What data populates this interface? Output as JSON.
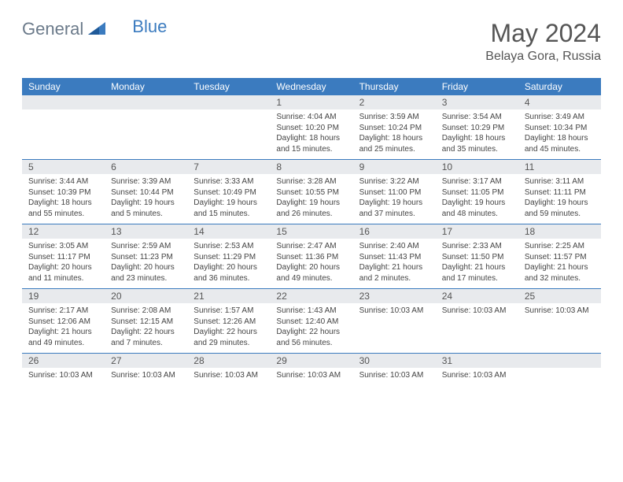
{
  "brand": {
    "part1": "General",
    "part2": "Blue"
  },
  "title": "May 2024",
  "location": "Belaya Gora, Russia",
  "colors": {
    "header_bg": "#3b7bbf",
    "daynum_bg": "#e8eaed",
    "text": "#555555",
    "rule": "#3b7bbf"
  },
  "day_names": [
    "Sunday",
    "Monday",
    "Tuesday",
    "Wednesday",
    "Thursday",
    "Friday",
    "Saturday"
  ],
  "weeks": [
    [
      {
        "n": "",
        "lines": []
      },
      {
        "n": "",
        "lines": []
      },
      {
        "n": "",
        "lines": []
      },
      {
        "n": "1",
        "lines": [
          "Sunrise: 4:04 AM",
          "Sunset: 10:20 PM",
          "Daylight: 18 hours and 15 minutes."
        ]
      },
      {
        "n": "2",
        "lines": [
          "Sunrise: 3:59 AM",
          "Sunset: 10:24 PM",
          "Daylight: 18 hours and 25 minutes."
        ]
      },
      {
        "n": "3",
        "lines": [
          "Sunrise: 3:54 AM",
          "Sunset: 10:29 PM",
          "Daylight: 18 hours and 35 minutes."
        ]
      },
      {
        "n": "4",
        "lines": [
          "Sunrise: 3:49 AM",
          "Sunset: 10:34 PM",
          "Daylight: 18 hours and 45 minutes."
        ]
      }
    ],
    [
      {
        "n": "5",
        "lines": [
          "Sunrise: 3:44 AM",
          "Sunset: 10:39 PM",
          "Daylight: 18 hours and 55 minutes."
        ]
      },
      {
        "n": "6",
        "lines": [
          "Sunrise: 3:39 AM",
          "Sunset: 10:44 PM",
          "Daylight: 19 hours and 5 minutes."
        ]
      },
      {
        "n": "7",
        "lines": [
          "Sunrise: 3:33 AM",
          "Sunset: 10:49 PM",
          "Daylight: 19 hours and 15 minutes."
        ]
      },
      {
        "n": "8",
        "lines": [
          "Sunrise: 3:28 AM",
          "Sunset: 10:55 PM",
          "Daylight: 19 hours and 26 minutes."
        ]
      },
      {
        "n": "9",
        "lines": [
          "Sunrise: 3:22 AM",
          "Sunset: 11:00 PM",
          "Daylight: 19 hours and 37 minutes."
        ]
      },
      {
        "n": "10",
        "lines": [
          "Sunrise: 3:17 AM",
          "Sunset: 11:05 PM",
          "Daylight: 19 hours and 48 minutes."
        ]
      },
      {
        "n": "11",
        "lines": [
          "Sunrise: 3:11 AM",
          "Sunset: 11:11 PM",
          "Daylight: 19 hours and 59 minutes."
        ]
      }
    ],
    [
      {
        "n": "12",
        "lines": [
          "Sunrise: 3:05 AM",
          "Sunset: 11:17 PM",
          "Daylight: 20 hours and 11 minutes."
        ]
      },
      {
        "n": "13",
        "lines": [
          "Sunrise: 2:59 AM",
          "Sunset: 11:23 PM",
          "Daylight: 20 hours and 23 minutes."
        ]
      },
      {
        "n": "14",
        "lines": [
          "Sunrise: 2:53 AM",
          "Sunset: 11:29 PM",
          "Daylight: 20 hours and 36 minutes."
        ]
      },
      {
        "n": "15",
        "lines": [
          "Sunrise: 2:47 AM",
          "Sunset: 11:36 PM",
          "Daylight: 20 hours and 49 minutes."
        ]
      },
      {
        "n": "16",
        "lines": [
          "Sunrise: 2:40 AM",
          "Sunset: 11:43 PM",
          "Daylight: 21 hours and 2 minutes."
        ]
      },
      {
        "n": "17",
        "lines": [
          "Sunrise: 2:33 AM",
          "Sunset: 11:50 PM",
          "Daylight: 21 hours and 17 minutes."
        ]
      },
      {
        "n": "18",
        "lines": [
          "Sunrise: 2:25 AM",
          "Sunset: 11:57 PM",
          "Daylight: 21 hours and 32 minutes."
        ]
      }
    ],
    [
      {
        "n": "19",
        "lines": [
          "Sunrise: 2:17 AM",
          "Sunset: 12:06 AM",
          "Daylight: 21 hours and 49 minutes."
        ]
      },
      {
        "n": "20",
        "lines": [
          "Sunrise: 2:08 AM",
          "Sunset: 12:15 AM",
          "Daylight: 22 hours and 7 minutes."
        ]
      },
      {
        "n": "21",
        "lines": [
          "Sunrise: 1:57 AM",
          "Sunset: 12:26 AM",
          "Daylight: 22 hours and 29 minutes."
        ]
      },
      {
        "n": "22",
        "lines": [
          "Sunrise: 1:43 AM",
          "Sunset: 12:40 AM",
          "Daylight: 22 hours and 56 minutes."
        ]
      },
      {
        "n": "23",
        "lines": [
          "Sunrise: 10:03 AM"
        ]
      },
      {
        "n": "24",
        "lines": [
          "Sunrise: 10:03 AM"
        ]
      },
      {
        "n": "25",
        "lines": [
          "Sunrise: 10:03 AM"
        ]
      }
    ],
    [
      {
        "n": "26",
        "lines": [
          "Sunrise: 10:03 AM"
        ]
      },
      {
        "n": "27",
        "lines": [
          "Sunrise: 10:03 AM"
        ]
      },
      {
        "n": "28",
        "lines": [
          "Sunrise: 10:03 AM"
        ]
      },
      {
        "n": "29",
        "lines": [
          "Sunrise: 10:03 AM"
        ]
      },
      {
        "n": "30",
        "lines": [
          "Sunrise: 10:03 AM"
        ]
      },
      {
        "n": "31",
        "lines": [
          "Sunrise: 10:03 AM"
        ]
      },
      {
        "n": "",
        "lines": []
      }
    ]
  ]
}
